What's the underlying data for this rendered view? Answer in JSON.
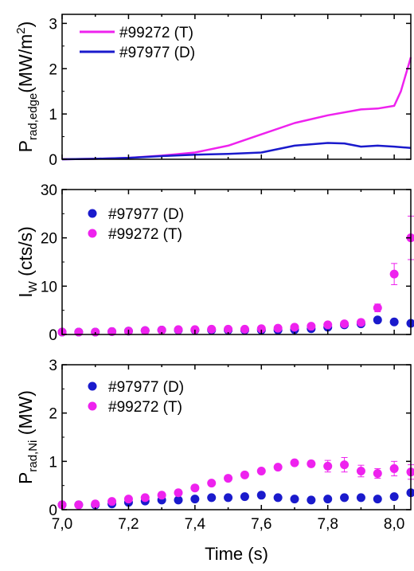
{
  "chart_data": [
    {
      "type": "line",
      "ylabel_main": "P",
      "ylabel_sub": "rad,edge",
      "ylabel_unit": "(MW/m",
      "ylabel_sup": "2",
      "ylabel_close": ")",
      "xlim": [
        7.0,
        8.05
      ],
      "ylim": [
        0,
        3.2
      ],
      "yticks": [
        "0",
        "1",
        "2",
        "3"
      ],
      "legend_position": "top-left",
      "series": [
        {
          "name": "#99272 (T)",
          "color": "#ee22ee",
          "points": [
            [
              7.0,
              0.0
            ],
            [
              7.1,
              0.01
            ],
            [
              7.2,
              0.03
            ],
            [
              7.3,
              0.08
            ],
            [
              7.4,
              0.15
            ],
            [
              7.5,
              0.3
            ],
            [
              7.6,
              0.55
            ],
            [
              7.7,
              0.8
            ],
            [
              7.8,
              0.97
            ],
            [
              7.9,
              1.1
            ],
            [
              7.95,
              1.12
            ],
            [
              8.0,
              1.18
            ],
            [
              8.02,
              1.5
            ],
            [
              8.04,
              2.0
            ],
            [
              8.05,
              2.25
            ]
          ]
        },
        {
          "name": "#97977 (D)",
          "color": "#1a1acc",
          "points": [
            [
              7.0,
              0.0
            ],
            [
              7.1,
              0.01
            ],
            [
              7.2,
              0.03
            ],
            [
              7.3,
              0.07
            ],
            [
              7.4,
              0.1
            ],
            [
              7.5,
              0.12
            ],
            [
              7.6,
              0.15
            ],
            [
              7.7,
              0.3
            ],
            [
              7.8,
              0.36
            ],
            [
              7.85,
              0.35
            ],
            [
              7.9,
              0.28
            ],
            [
              7.95,
              0.3
            ],
            [
              8.0,
              0.28
            ],
            [
              8.05,
              0.25
            ]
          ]
        }
      ]
    },
    {
      "type": "scatter",
      "ylabel_main": "I",
      "ylabel_sub": "W",
      "ylabel_unit": "  (cts/s)",
      "xlim": [
        7.0,
        8.05
      ],
      "ylim": [
        0,
        30
      ],
      "yticks": [
        "0",
        "10",
        "20",
        "30"
      ],
      "legend_position": "top-left",
      "series": [
        {
          "name": "#97977 (D)",
          "color": "#1a1acc",
          "points": [
            [
              7.0,
              0.5
            ],
            [
              7.05,
              0.5
            ],
            [
              7.1,
              0.5
            ],
            [
              7.15,
              0.6
            ],
            [
              7.2,
              0.7
            ],
            [
              7.25,
              0.8
            ],
            [
              7.3,
              0.9
            ],
            [
              7.35,
              0.9
            ],
            [
              7.4,
              0.9
            ],
            [
              7.45,
              0.9
            ],
            [
              7.5,
              0.9
            ],
            [
              7.55,
              0.9
            ],
            [
              7.6,
              0.9
            ],
            [
              7.65,
              0.9
            ],
            [
              7.7,
              1.0
            ],
            [
              7.75,
              1.2
            ],
            [
              7.8,
              1.5
            ],
            [
              7.85,
              2.0
            ],
            [
              7.9,
              2.2
            ],
            [
              7.95,
              3.0
            ],
            [
              8.0,
              2.6
            ],
            [
              8.05,
              2.3
            ]
          ]
        },
        {
          "name": "#99272 (T)",
          "color": "#ee22ee",
          "points": [
            [
              7.0,
              0.5
            ],
            [
              7.05,
              0.5
            ],
            [
              7.1,
              0.5
            ],
            [
              7.15,
              0.6
            ],
            [
              7.2,
              0.7
            ],
            [
              7.25,
              0.8
            ],
            [
              7.3,
              0.9
            ],
            [
              7.35,
              1.0
            ],
            [
              7.4,
              1.0
            ],
            [
              7.45,
              1.1
            ],
            [
              7.5,
              1.1
            ],
            [
              7.55,
              1.1
            ],
            [
              7.6,
              1.2
            ],
            [
              7.65,
              1.3
            ],
            [
              7.7,
              1.5
            ],
            [
              7.75,
              1.7
            ],
            [
              7.8,
              2.0
            ],
            [
              7.85,
              2.2
            ],
            [
              7.9,
              2.5
            ],
            [
              7.95,
              5.5
            ],
            [
              8.0,
              12.5
            ],
            [
              8.05,
              20.0
            ]
          ],
          "errors": [
            0,
            0,
            0,
            0,
            0,
            0,
            0,
            0,
            0,
            0,
            0,
            0,
            0,
            0,
            0,
            0,
            0,
            0,
            0.6,
            0.8,
            2.2,
            4.5
          ]
        }
      ]
    },
    {
      "type": "scatter",
      "ylabel_main": "P",
      "ylabel_sub": "rad,Ni",
      "ylabel_unit": " (MW)",
      "xlabel": "Time (s)",
      "xlim": [
        7.0,
        8.05
      ],
      "ylim": [
        0,
        3
      ],
      "yticks": [
        "0",
        "1",
        "2",
        "3"
      ],
      "xticks": [
        "7,0",
        "7,2",
        "7,4",
        "7,6",
        "7,8",
        "8,0"
      ],
      "legend_position": "top-left",
      "series": [
        {
          "name": "#97977 (D)",
          "color": "#1a1acc",
          "points": [
            [
              7.0,
              0.1
            ],
            [
              7.05,
              0.1
            ],
            [
              7.1,
              0.1
            ],
            [
              7.15,
              0.12
            ],
            [
              7.2,
              0.15
            ],
            [
              7.25,
              0.18
            ],
            [
              7.3,
              0.2
            ],
            [
              7.35,
              0.2
            ],
            [
              7.4,
              0.22
            ],
            [
              7.45,
              0.25
            ],
            [
              7.5,
              0.25
            ],
            [
              7.55,
              0.27
            ],
            [
              7.6,
              0.3
            ],
            [
              7.65,
              0.25
            ],
            [
              7.7,
              0.22
            ],
            [
              7.75,
              0.2
            ],
            [
              7.8,
              0.22
            ],
            [
              7.85,
              0.25
            ],
            [
              7.9,
              0.25
            ],
            [
              7.95,
              0.22
            ],
            [
              8.0,
              0.27
            ],
            [
              8.05,
              0.35
            ]
          ]
        },
        {
          "name": "#99272 (T)",
          "color": "#ee22ee",
          "points": [
            [
              7.0,
              0.1
            ],
            [
              7.05,
              0.1
            ],
            [
              7.1,
              0.12
            ],
            [
              7.15,
              0.17
            ],
            [
              7.2,
              0.22
            ],
            [
              7.25,
              0.25
            ],
            [
              7.3,
              0.3
            ],
            [
              7.35,
              0.35
            ],
            [
              7.4,
              0.45
            ],
            [
              7.45,
              0.55
            ],
            [
              7.5,
              0.65
            ],
            [
              7.55,
              0.72
            ],
            [
              7.6,
              0.8
            ],
            [
              7.65,
              0.88
            ],
            [
              7.7,
              0.97
            ],
            [
              7.75,
              0.95
            ],
            [
              7.8,
              0.9
            ],
            [
              7.85,
              0.93
            ],
            [
              7.9,
              0.8
            ],
            [
              7.95,
              0.75
            ],
            [
              8.0,
              0.85
            ],
            [
              8.05,
              0.78
            ]
          ],
          "errors": [
            0,
            0,
            0,
            0,
            0,
            0,
            0,
            0,
            0,
            0,
            0,
            0,
            0,
            0,
            0.05,
            0.06,
            0.12,
            0.15,
            0.12,
            0.1,
            0.15,
            0.15
          ]
        }
      ]
    }
  ]
}
